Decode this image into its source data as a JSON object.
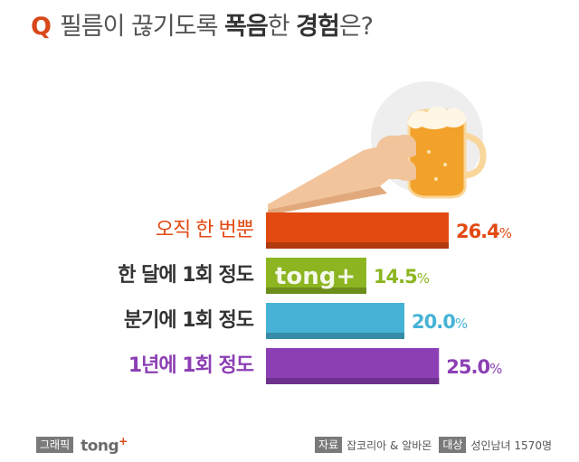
{
  "title": {
    "q": "Q",
    "part1": "필름이 끊기도록",
    "bold1": "폭음",
    "part2": "한",
    "bold2": "경험",
    "part3": "은?"
  },
  "chart_data": {
    "type": "bar",
    "orientation": "horizontal",
    "categories": [
      "오직 한 번뿐",
      "한 달에 1회 정도",
      "분기에 1회 정도",
      "1년에 1회 정도"
    ],
    "values": [
      26.4,
      14.5,
      20.0,
      25.0
    ],
    "value_labels": [
      "26.4",
      "14.5",
      "20.0",
      "25.0"
    ],
    "unit": "%",
    "colors": [
      "#e24a12",
      "#8cb521",
      "#46b3d6",
      "#8c3fb4"
    ],
    "xlim": [
      0,
      30
    ],
    "grid": false,
    "legend": "none",
    "bar_watermark": "tong+"
  },
  "footer": {
    "graphic_tag": "그래픽",
    "brand": "tong",
    "brand_plus": "+",
    "source_tag": "자료",
    "source": "잡코리아 & 알바몬",
    "target_tag": "대상",
    "target": "성인남녀 1570명"
  }
}
